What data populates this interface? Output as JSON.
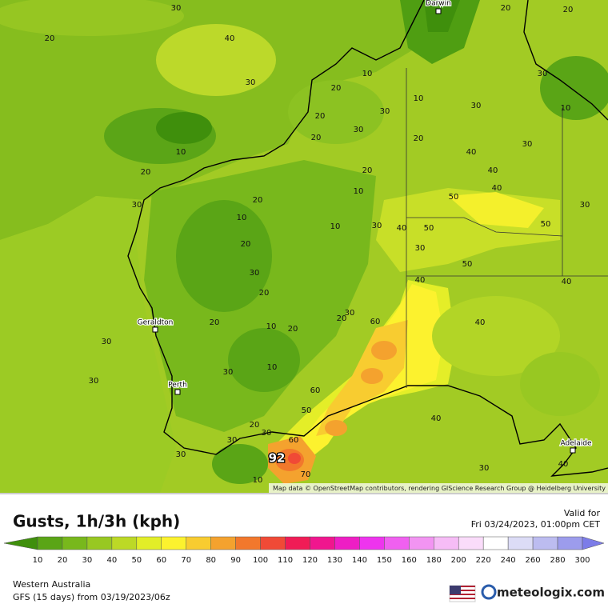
{
  "map": {
    "cities": [
      "Darwin",
      "Geraldton",
      "Perth",
      "Adelaide"
    ],
    "contour_labels": [
      30,
      20,
      40,
      30,
      10,
      20,
      30,
      10,
      20,
      20,
      30,
      20,
      20,
      30,
      30,
      30,
      10,
      20,
      20,
      30,
      60,
      60,
      50,
      30,
      30,
      20,
      60,
      92,
      70,
      10,
      30,
      40,
      40,
      30,
      40,
      50,
      50,
      50,
      40,
      30,
      30,
      10,
      20,
      10,
      10,
      20,
      20,
      30,
      30,
      40,
      40,
      30,
      40,
      50,
      30,
      20,
      10,
      30,
      30,
      20,
      20,
      20,
      10,
      10,
      40,
      40
    ],
    "attribution": "Map data © OpenStreetMap contributors, rendering GIScience Research Group @ Heidelberg University"
  },
  "legend": {
    "title": "Gusts, 1h/3h (kph)",
    "valid_label": "Valid for",
    "valid_time": "Fri 03/24/2023, 01:00pm CET",
    "ticks": [
      10,
      20,
      30,
      40,
      50,
      60,
      70,
      80,
      90,
      100,
      110,
      120,
      130,
      140,
      150,
      160,
      180,
      200,
      220,
      240,
      260,
      280,
      300
    ],
    "colors": [
      "#3f8f0c",
      "#5aa516",
      "#78b81c",
      "#98c822",
      "#bcd926",
      "#e2ee28",
      "#fcf22e",
      "#f8cc30",
      "#f4a22e",
      "#f2782c",
      "#f04a36",
      "#f01c56",
      "#f0168e",
      "#ee1ec4",
      "#ee34ee",
      "#f060f0",
      "#f294f2",
      "#f6bcf6",
      "#fadcfa",
      "#ffffff",
      "#dcdcf6",
      "#bcbcf0",
      "#9c9cec",
      "#7c7ce8"
    ]
  },
  "footer": {
    "region": "Western Australia",
    "model": "GFS (15 days) from 03/19/2023/06z",
    "brand": "meteologix.com"
  }
}
